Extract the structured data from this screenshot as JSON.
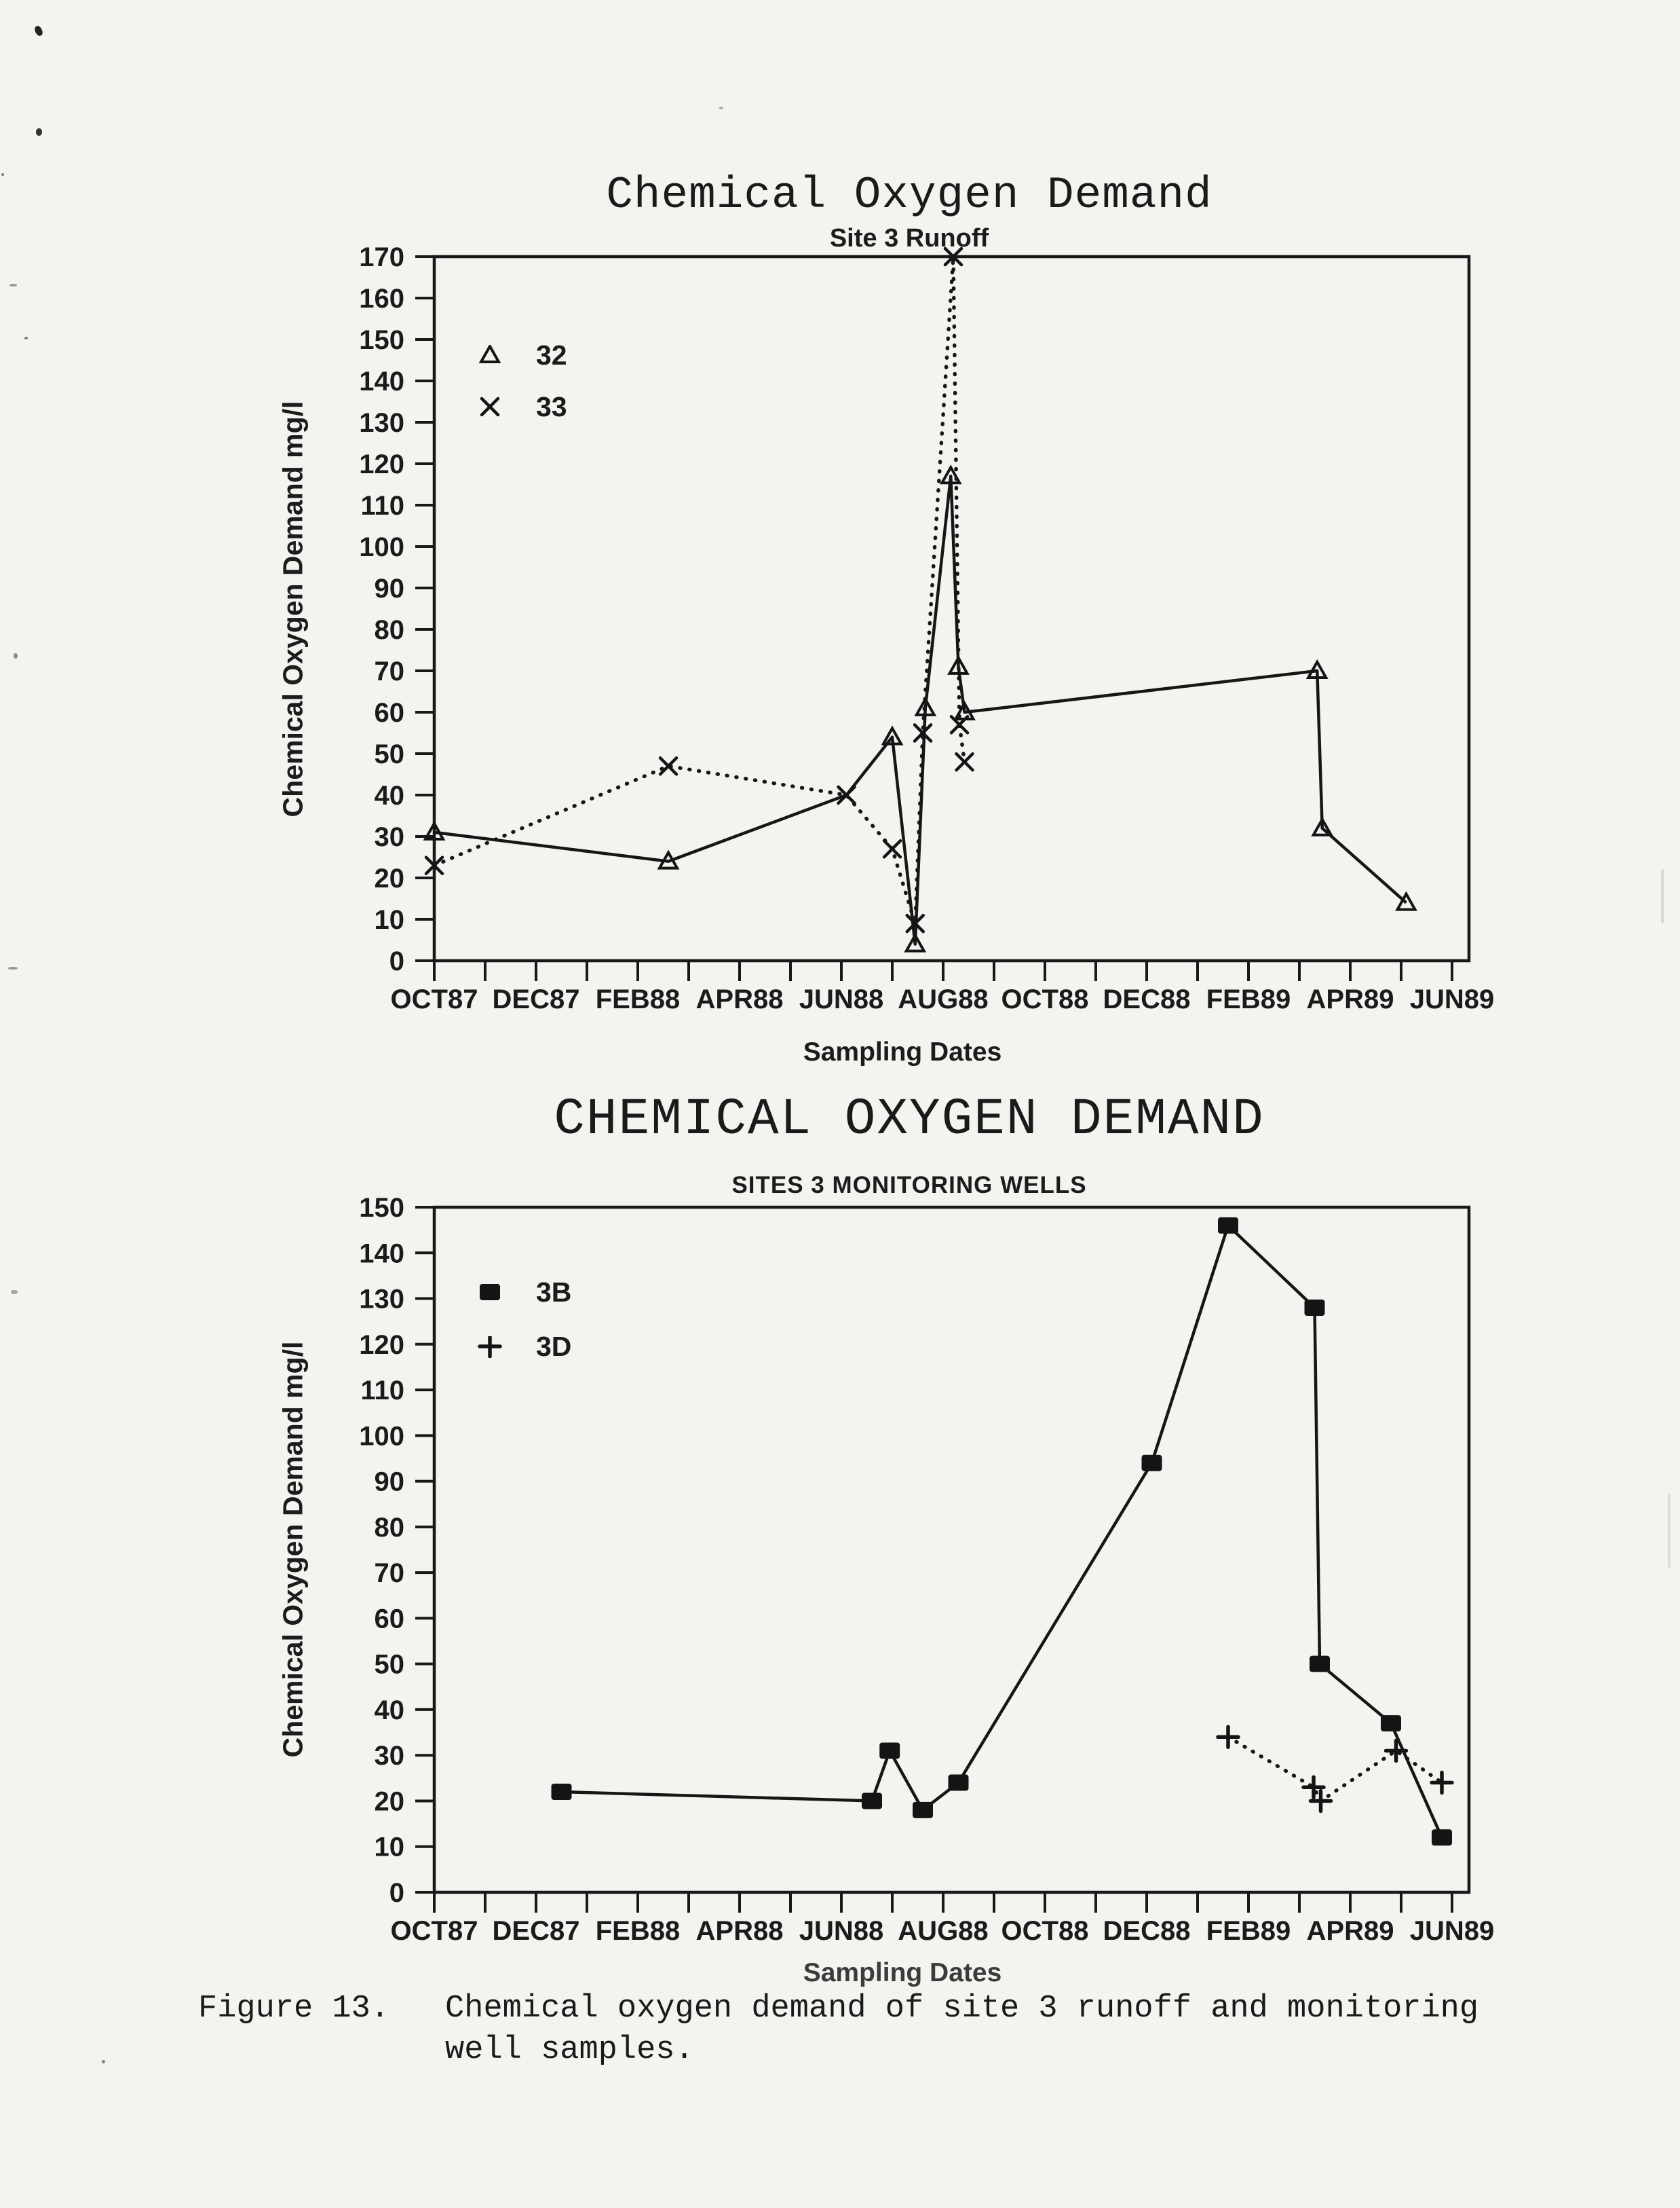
{
  "caption": {
    "label": "Figure 13.",
    "line1": "Chemical oxygen demand of site 3 runoff and monitoring",
    "line2": "well samples."
  },
  "chart_data": [
    {
      "type": "line",
      "title": "Chemical Oxygen Demand",
      "subtitle": "Site 3 Runoff",
      "xlabel": "Sampling Dates",
      "ylabel": "Chemical Oxygen Demand  mg/l",
      "ylim": [
        0,
        170
      ],
      "ytick_step": 10,
      "grid": false,
      "legend_position": "upper-left-inside",
      "x_unit": "months since OCT87 (minor ticks monthly)",
      "xlim_months": [
        0,
        20.33
      ],
      "xtick_labels": [
        "OCT87",
        "DEC87",
        "FEB88",
        "APR88",
        "JUN88",
        "AUG88",
        "OCT88",
        "DEC88",
        "FEB89",
        "APR89",
        "JUN89"
      ],
      "xtick_label_months": [
        0,
        2,
        4,
        6,
        8,
        10,
        12,
        14,
        16,
        18,
        20
      ],
      "series": [
        {
          "name": "32",
          "marker": "triangle",
          "line": "solid",
          "points": [
            [
              0,
              31
            ],
            [
              4.6,
              24
            ],
            [
              8.1,
              40,
              "none"
            ],
            [
              9.0,
              54
            ],
            [
              9.45,
              4
            ],
            [
              9.65,
              61
            ],
            [
              10.15,
              117
            ],
            [
              10.3,
              71
            ],
            [
              10.42,
              60
            ],
            [
              17.35,
              70
            ],
            [
              17.45,
              32
            ],
            [
              19.1,
              14
            ]
          ]
        },
        {
          "name": "33",
          "marker": "x",
          "line": "dotted",
          "points": [
            [
              0,
              23
            ],
            [
              4.6,
              47
            ],
            [
              8.1,
              40
            ],
            [
              9.0,
              27
            ],
            [
              9.45,
              9
            ],
            [
              9.6,
              55
            ],
            [
              10.2,
              170
            ],
            [
              10.32,
              57
            ],
            [
              10.42,
              48
            ]
          ]
        }
      ]
    },
    {
      "type": "line",
      "title": "CHEMICAL OXYGEN DEMAND",
      "subtitle": "SITES 3 MONITORING WELLS",
      "xlabel": "Sampling Dates",
      "ylabel": "Chemical Oxygen Demand  mg/l",
      "ylim": [
        0,
        150
      ],
      "ytick_step": 10,
      "grid": false,
      "legend_position": "upper-left-inside",
      "x_unit": "months since OCT87 (minor ticks monthly)",
      "xlim_months": [
        0,
        20.33
      ],
      "xtick_labels": [
        "OCT87",
        "DEC87",
        "FEB88",
        "APR88",
        "JUN88",
        "AUG88",
        "OCT88",
        "DEC88",
        "FEB89",
        "APR89",
        "JUN89"
      ],
      "xtick_label_months": [
        0,
        2,
        4,
        6,
        8,
        10,
        12,
        14,
        16,
        18,
        20
      ],
      "series": [
        {
          "name": "3B",
          "marker": "square",
          "line": "solid",
          "points": [
            [
              2.5,
              22
            ],
            [
              8.6,
              20
            ],
            [
              8.95,
              31
            ],
            [
              9.6,
              18
            ],
            [
              10.3,
              24
            ],
            [
              14.1,
              94
            ],
            [
              15.6,
              146
            ],
            [
              17.3,
              128
            ],
            [
              17.4,
              50
            ],
            [
              18.8,
              37
            ],
            [
              19.8,
              12
            ]
          ]
        },
        {
          "name": "3D",
          "marker": "plus",
          "line": "dotted",
          "points": [
            [
              15.6,
              34
            ],
            [
              17.28,
              23
            ],
            [
              17.42,
              20
            ],
            [
              18.9,
              31
            ],
            [
              19.8,
              24
            ]
          ]
        }
      ]
    }
  ]
}
